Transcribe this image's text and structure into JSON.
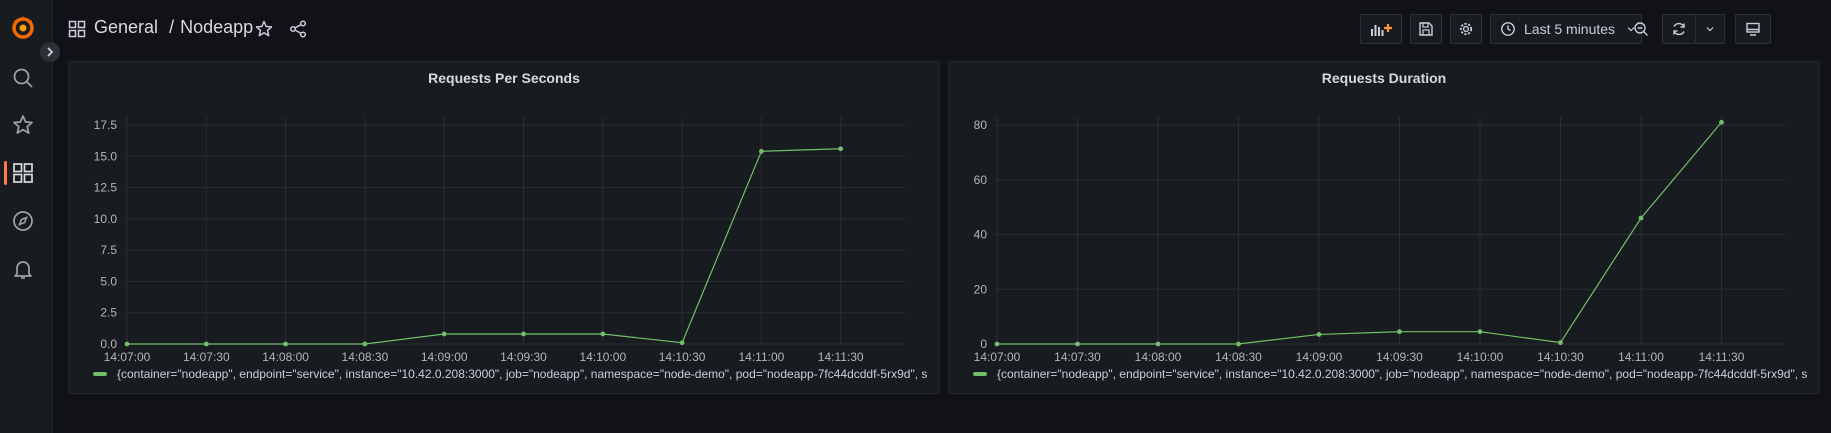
{
  "header": {
    "breadcrumb_folder": "General",
    "breadcrumb_separator": "/",
    "breadcrumb_dashboard": "Nodeapp",
    "time_range_label": "Last 5 minutes"
  },
  "colors": {
    "accent": "#ff7941",
    "series": "#73bf69",
    "background": "#111217",
    "panel": "#181b1f"
  },
  "sidebar": {
    "items": [
      {
        "icon": "search-icon"
      },
      {
        "icon": "star-icon"
      },
      {
        "icon": "dashboards-icon",
        "active": true
      },
      {
        "icon": "compass-icon"
      },
      {
        "icon": "bell-icon"
      }
    ]
  },
  "toolbar": {
    "icons": [
      "add-panel-icon",
      "save-icon",
      "settings-icon",
      "clock-icon",
      "chevron-down-icon",
      "zoom-out-icon",
      "refresh-icon",
      "chevron-down-icon",
      "tv-mode-icon"
    ]
  },
  "panels": [
    {
      "title": "Requests Per Seconds",
      "legend": "{container=\"nodeapp\", endpoint=\"service\", instance=\"10.42.0.208:3000\", job=\"nodeapp\", namespace=\"node-demo\", pod=\"nodeapp-7fc44dcddf-5rx9d\", s"
    },
    {
      "title": "Requests Duration",
      "legend": "{container=\"nodeapp\", endpoint=\"service\", instance=\"10.42.0.208:3000\", job=\"nodeapp\", namespace=\"node-demo\", pod=\"nodeapp-7fc44dcddf-5rx9d\", s"
    }
  ],
  "chart_data": [
    {
      "type": "line",
      "title": "Requests Per Seconds",
      "x": [
        "14:07:00",
        "14:07:30",
        "14:08:00",
        "14:08:30",
        "14:09:00",
        "14:09:30",
        "14:10:00",
        "14:10:30",
        "14:11:00",
        "14:11:30"
      ],
      "y_ticks": [
        "0.0",
        "2.5",
        "5.0",
        "7.5",
        "10.0",
        "12.5",
        "15.0",
        "17.5"
      ],
      "ylim": [
        0,
        17.5
      ],
      "series": [
        {
          "values": [
            0,
            0,
            0,
            0,
            0.8,
            0.8,
            0.8,
            0.1,
            15.4,
            15.6
          ]
        }
      ],
      "grid": true,
      "legend_position": "bottom"
    },
    {
      "type": "line",
      "title": "Requests Duration",
      "x": [
        "14:07:00",
        "14:07:30",
        "14:08:00",
        "14:08:30",
        "14:09:00",
        "14:09:30",
        "14:10:00",
        "14:10:30",
        "14:11:00",
        "14:11:30"
      ],
      "y_ticks": [
        "0",
        "20",
        "40",
        "60",
        "80"
      ],
      "ylim": [
        0,
        80
      ],
      "series": [
        {
          "values": [
            0,
            0,
            0,
            0,
            3.5,
            4.5,
            4.5,
            0.5,
            46,
            81
          ]
        }
      ],
      "grid": true,
      "legend_position": "bottom"
    }
  ]
}
